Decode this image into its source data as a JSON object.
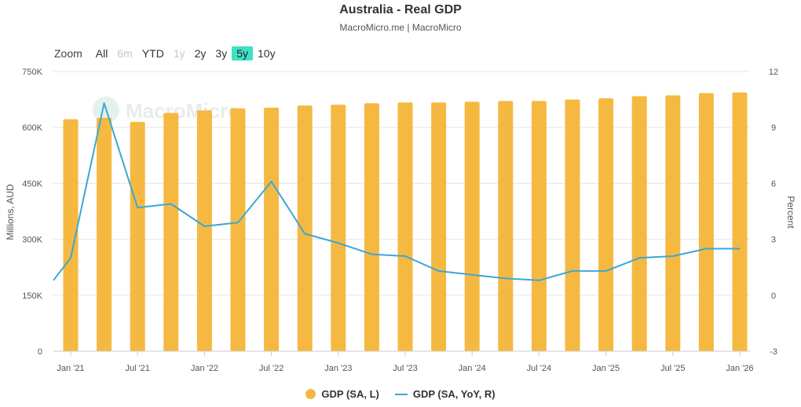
{
  "header": {
    "title": "Australia - Real GDP",
    "subtitle": "MacroMicro.me | MacroMicro"
  },
  "watermark": "MacroMicro",
  "zoom": {
    "label": "Zoom",
    "buttons": [
      {
        "label": "All",
        "state": "normal"
      },
      {
        "label": "6m",
        "state": "disabled"
      },
      {
        "label": "YTD",
        "state": "normal"
      },
      {
        "label": "1y",
        "state": "disabled"
      },
      {
        "label": "2y",
        "state": "normal"
      },
      {
        "label": "3y",
        "state": "normal"
      },
      {
        "label": "5y",
        "state": "active"
      },
      {
        "label": "10y",
        "state": "normal"
      }
    ]
  },
  "colors": {
    "bars": "#f5b942",
    "line": "#3aa8d4",
    "grid": "#e6e6e6",
    "active_zoom": "#3fe0c4"
  },
  "chart_data": {
    "type": "bar+line",
    "x_ticks": [
      "Jan '21",
      "Jul '21",
      "Jan '22",
      "Jul '22",
      "Jan '23",
      "Jul '23",
      "Jan '24",
      "Jul '24",
      "Jan '25",
      "Jul '25",
      "Jan '26"
    ],
    "left_axis": {
      "label": "Millions, AUD",
      "range": [
        0,
        750000
      ],
      "ticks": [
        "0",
        "150K",
        "300K",
        "450K",
        "600K",
        "750K"
      ],
      "tick_values": [
        0,
        150000,
        300000,
        450000,
        600000,
        750000
      ]
    },
    "right_axis": {
      "label": "Percent",
      "range": [
        -3,
        12
      ],
      "ticks": [
        "-3",
        "0",
        "3",
        "6",
        "9",
        "12"
      ],
      "tick_values": [
        -3,
        0,
        3,
        6,
        9,
        12
      ]
    },
    "quarters": [
      "2021-03",
      "2021-06",
      "2021-09",
      "2021-12",
      "2022-03",
      "2022-06",
      "2022-09",
      "2022-12",
      "2023-03",
      "2023-06",
      "2023-09",
      "2023-12",
      "2024-03",
      "2024-06",
      "2024-09",
      "2024-12",
      "2025-03",
      "2025-06",
      "2025-09",
      "2025-12",
      "2026-03"
    ],
    "series": [
      {
        "name": "GDP (SA, L)",
        "type": "bar",
        "axis": "left",
        "values": [
          622000,
          626000,
          615000,
          639000,
          646000,
          651000,
          653000,
          659000,
          661000,
          665000,
          667000,
          667000,
          669000,
          671000,
          671000,
          675000,
          678000,
          684000,
          686000,
          692000,
          694000
        ]
      },
      {
        "name": "GDP (SA, YoY, R)",
        "type": "line",
        "axis": "right",
        "lead_in": [
          0.8
        ],
        "values": [
          2.0,
          10.3,
          4.7,
          4.9,
          3.7,
          3.9,
          6.1,
          3.3,
          2.8,
          2.2,
          2.1,
          1.3,
          1.1,
          0.9,
          0.8,
          1.3,
          1.3,
          2.0,
          2.1,
          2.5,
          2.5
        ]
      }
    ],
    "grid": true,
    "legend": "bottom-center"
  }
}
